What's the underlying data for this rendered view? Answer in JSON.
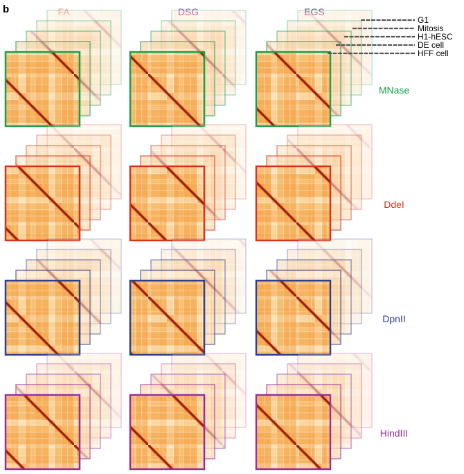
{
  "panel_label": "b",
  "columns": [
    {
      "label": "FA",
      "color": "#f2a3a3"
    },
    {
      "label": "DSG",
      "color": "#a04ab0"
    },
    {
      "label": "EGS",
      "color": "#7a4f8f"
    }
  ],
  "rows": [
    {
      "label": "MNase",
      "color": "#1b9e4a"
    },
    {
      "label": "DdeI",
      "color": "#d8311b"
    },
    {
      "label": "DpnII",
      "color": "#2e3f8f"
    },
    {
      "label": "HindIII",
      "color": "#9a2b9c"
    }
  ],
  "cell_types": [
    "G1",
    "Mitosis",
    "H1-hESC",
    "DE cell",
    "HFF cell"
  ],
  "legend_line_color": "#555555",
  "heatmap_colors": {
    "low": "#fff1d6",
    "mid": "#f6a13c",
    "high": "#8a1b0e"
  }
}
